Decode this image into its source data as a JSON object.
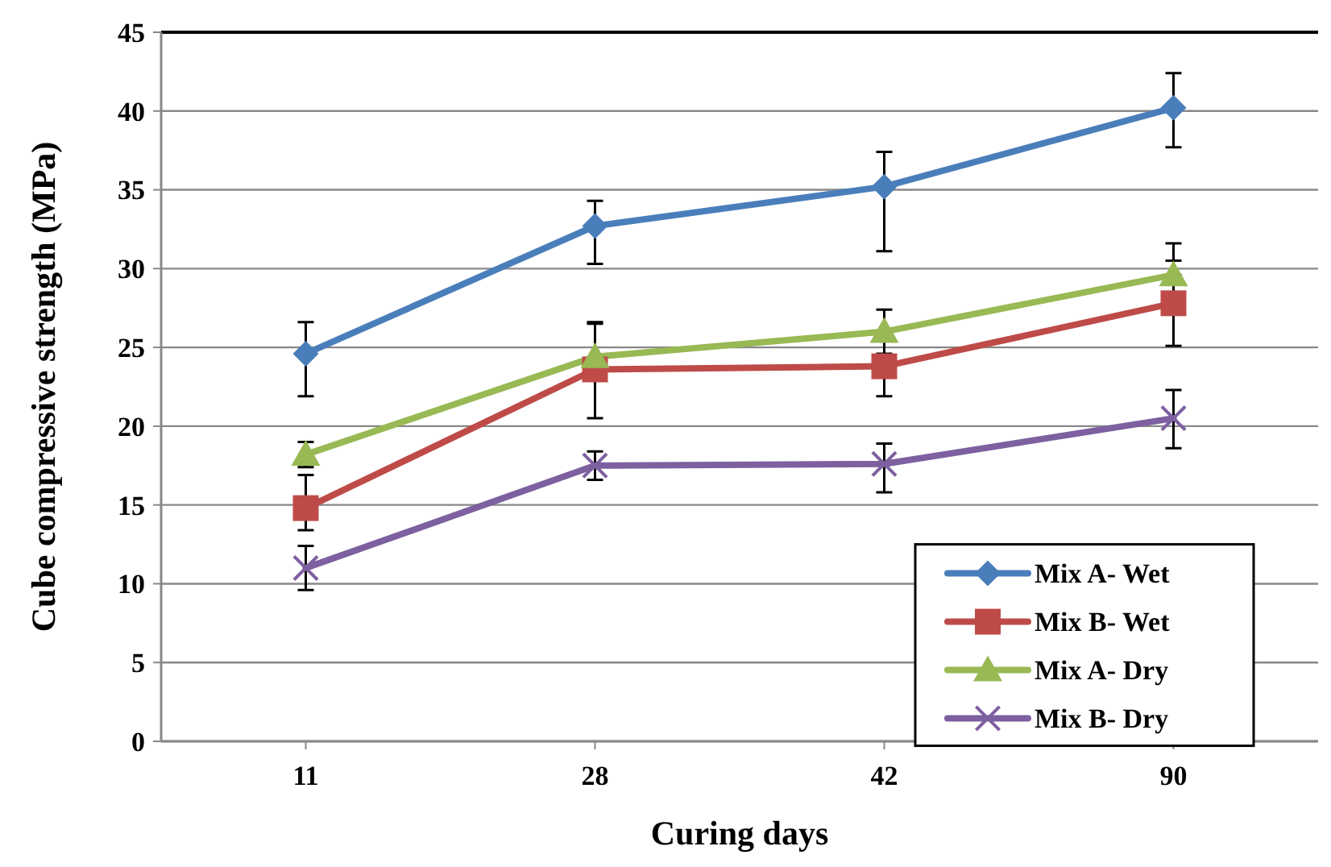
{
  "chart_data": {
    "type": "line",
    "xlabel": "Curing days",
    "ylabel": "Cube compressive strength (MPa)",
    "categories": [
      "11",
      "28",
      "42",
      "90"
    ],
    "ylim": [
      0,
      45
    ],
    "yticks": [
      0,
      5,
      10,
      15,
      20,
      25,
      30,
      35,
      40,
      45
    ],
    "grid": "y",
    "legend": "bottom right",
    "series": [
      {
        "name": "Mix A- Wet",
        "color": "#4a7ebb",
        "marker": "diamond",
        "values": [
          24.6,
          32.7,
          35.2,
          40.2
        ],
        "errors": [
          [
            21.9,
            26.6
          ],
          [
            30.3,
            34.3
          ],
          [
            31.1,
            37.4
          ],
          [
            37.7,
            42.4
          ]
        ]
      },
      {
        "name": "Mix B- Wet",
        "color": "#be4b48",
        "marker": "square",
        "values": [
          14.8,
          23.6,
          23.8,
          27.8
        ],
        "errors": [
          [
            13.4,
            16.9
          ],
          [
            20.5,
            26.5
          ],
          [
            21.9,
            23.8
          ],
          [
            25.1,
            30.5
          ]
        ]
      },
      {
        "name": "Mix A- Dry",
        "color": "#98b954",
        "marker": "triangle",
        "values": [
          18.2,
          24.4,
          26.0,
          29.6
        ],
        "errors": [
          [
            17.4,
            19.0
          ],
          [
            23.0,
            26.6
          ],
          [
            24.6,
            27.4
          ],
          [
            29.6,
            31.6
          ]
        ]
      },
      {
        "name": "Mix B- Dry",
        "color": "#7d60a0",
        "marker": "cross",
        "values": [
          11.0,
          17.5,
          17.6,
          20.5
        ],
        "errors": [
          [
            9.6,
            12.4
          ],
          [
            16.6,
            18.4
          ],
          [
            15.8,
            18.9
          ],
          [
            18.6,
            22.3
          ]
        ]
      }
    ]
  }
}
